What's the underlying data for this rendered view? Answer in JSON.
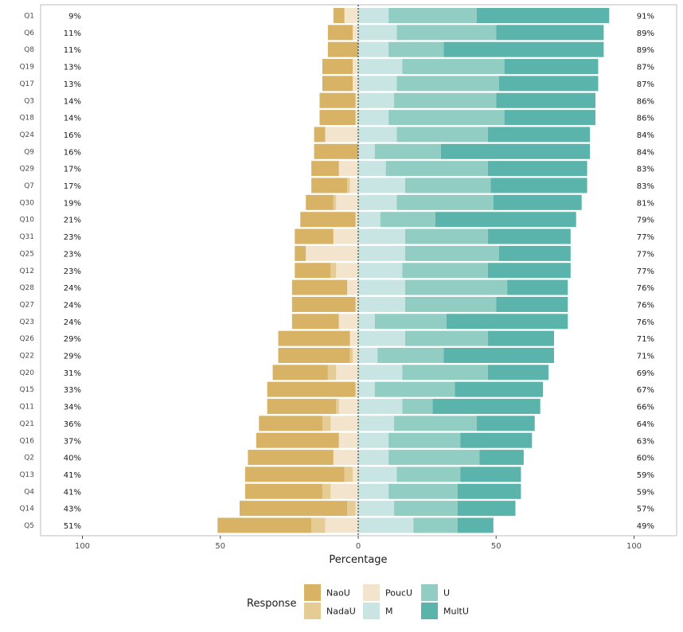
{
  "chart_data": {
    "type": "bar",
    "orientation": "horizontal-diverging",
    "xlabel": "Percentage",
    "xticks": [
      -100,
      -50,
      0,
      50,
      100
    ],
    "xtick_labels": [
      "100",
      "50",
      "0",
      "50",
      "100"
    ],
    "xlim": [
      -100,
      100
    ],
    "legend_title": "Response",
    "legend_position": "bottom",
    "categories": [
      "Q1",
      "Q6",
      "Q8",
      "Q19",
      "Q17",
      "Q3",
      "Q18",
      "Q24",
      "Q9",
      "Q29",
      "Q7",
      "Q30",
      "Q10",
      "Q31",
      "Q25",
      "Q12",
      "Q28",
      "Q27",
      "Q23",
      "Q26",
      "Q22",
      "Q20",
      "Q15",
      "Q11",
      "Q21",
      "Q16",
      "Q2",
      "Q13",
      "Q4",
      "Q14",
      "Q5"
    ],
    "left_pct": [
      "9%",
      "11%",
      "11%",
      "13%",
      "13%",
      "14%",
      "14%",
      "16%",
      "16%",
      "17%",
      "17%",
      "19%",
      "21%",
      "23%",
      "23%",
      "23%",
      "24%",
      "24%",
      "24%",
      "29%",
      "29%",
      "31%",
      "33%",
      "34%",
      "36%",
      "37%",
      "40%",
      "41%",
      "41%",
      "43%",
      "51%"
    ],
    "right_pct": [
      "91%",
      "89%",
      "89%",
      "87%",
      "87%",
      "86%",
      "86%",
      "84%",
      "84%",
      "83%",
      "83%",
      "81%",
      "79%",
      "77%",
      "77%",
      "77%",
      "76%",
      "76%",
      "76%",
      "71%",
      "71%",
      "69%",
      "67%",
      "66%",
      "64%",
      "63%",
      "60%",
      "59%",
      "59%",
      "57%",
      "49%"
    ],
    "series": [
      {
        "name": "NaoU",
        "color": "#d8b365",
        "side": "negative",
        "values": [
          4,
          9,
          11,
          11,
          11,
          13,
          13,
          4,
          16,
          10,
          13,
          10,
          20,
          14,
          4,
          13,
          20,
          23,
          17,
          26,
          26,
          20,
          32,
          25,
          23,
          30,
          31,
          36,
          28,
          39,
          34
        ]
      },
      {
        "name": "NadaU",
        "color": "#e5cb94",
        "side": "negative",
        "values": [
          0,
          0,
          0,
          0,
          0,
          0,
          0,
          0,
          0,
          0,
          1,
          1,
          0,
          0,
          0,
          2,
          0,
          0,
          0,
          0,
          1,
          3,
          0,
          1,
          3,
          0,
          0,
          3,
          3,
          3,
          5
        ]
      },
      {
        "name": "PoucU",
        "color": "#f3e5cd",
        "side": "negative",
        "values": [
          5,
          2,
          0,
          2,
          2,
          1,
          1,
          12,
          0,
          7,
          3,
          8,
          1,
          9,
          19,
          8,
          4,
          1,
          7,
          3,
          2,
          8,
          1,
          7,
          10,
          7,
          9,
          2,
          10,
          1,
          12
        ]
      },
      {
        "name": "M",
        "color": "#c9e5e3",
        "side": "positive",
        "values": [
          11,
          14,
          11,
          16,
          14,
          13,
          11,
          14,
          6,
          10,
          17,
          14,
          8,
          17,
          17,
          16,
          17,
          17,
          6,
          17,
          7,
          16,
          6,
          16,
          13,
          11,
          11,
          14,
          11,
          13,
          20
        ]
      },
      {
        "name": "U",
        "color": "#92cdc3",
        "side": "positive",
        "values": [
          32,
          36,
          20,
          37,
          37,
          37,
          42,
          33,
          24,
          37,
          31,
          35,
          20,
          30,
          34,
          31,
          37,
          33,
          26,
          30,
          24,
          31,
          29,
          11,
          30,
          26,
          33,
          23,
          25,
          23,
          16
        ]
      },
      {
        "name": "MultU",
        "color": "#5ab4ac",
        "side": "positive",
        "values": [
          48,
          39,
          58,
          34,
          36,
          36,
          33,
          37,
          54,
          36,
          35,
          32,
          51,
          30,
          26,
          30,
          22,
          26,
          44,
          24,
          40,
          22,
          32,
          39,
          21,
          26,
          16,
          22,
          23,
          21,
          13
        ]
      }
    ]
  }
}
